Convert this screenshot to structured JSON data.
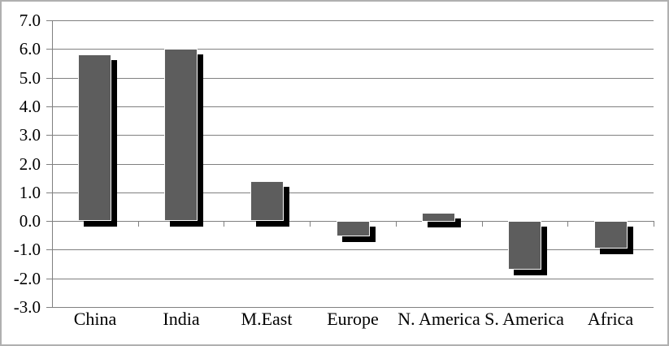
{
  "chart_data": {
    "type": "bar",
    "title": "",
    "xlabel": "",
    "ylabel": "",
    "categories": [
      "China",
      "India",
      "M.East",
      "Europe",
      "N. America",
      "S. America",
      "Africa"
    ],
    "values": [
      5.8,
      6.0,
      1.4,
      -0.55,
      0.3,
      -1.7,
      -0.95
    ],
    "ylim": [
      -3.0,
      7.0
    ],
    "ytick_step": 1.0,
    "ytick_labels": [
      "7.0",
      "6.0",
      "5.0",
      "4.0",
      "3.0",
      "2.0",
      "1.0",
      "0.0",
      "-1.0",
      "-2.0",
      "-3.0"
    ],
    "grid": true,
    "legend": false,
    "colors": {
      "bar_fill": "#5d5d5d",
      "bar_edge": "#fbfbfb",
      "bar_shadow": "#000000",
      "gridline": "#808080",
      "axis_text": "#000000",
      "chart_border": "#b0b0b0",
      "background": "#ffffff"
    }
  }
}
